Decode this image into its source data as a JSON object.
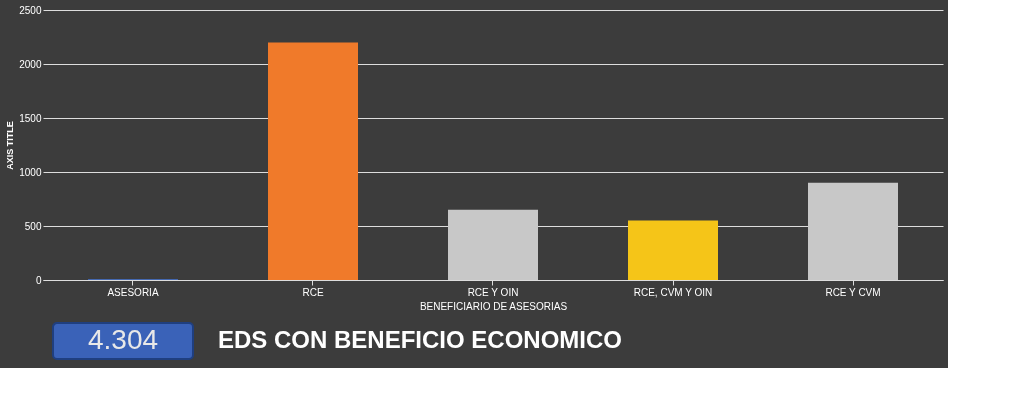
{
  "chart_data": {
    "type": "bar",
    "title": "EDS CON BENEFICIO ECONOMICO",
    "xlabel": "BENEFICIARIO DE ASESORIAS",
    "ylabel": "AXIS TITLE",
    "categories": [
      "ASESORIA",
      "RCE",
      "RCE Y OIN",
      "RCE, CVM Y OIN",
      "RCE Y CVM"
    ],
    "values": [
      10,
      2200,
      650,
      550,
      900
    ],
    "colors": [
      "#4468b0",
      "#f07a2a",
      "#c8c8c8",
      "#f5c518",
      "#c8c8c8"
    ],
    "ylim": [
      0,
      2500
    ],
    "yticks": [
      0,
      500,
      1000,
      1500,
      2000,
      2500
    ],
    "grid": "y",
    "annotations": [
      "4.304"
    ]
  }
}
